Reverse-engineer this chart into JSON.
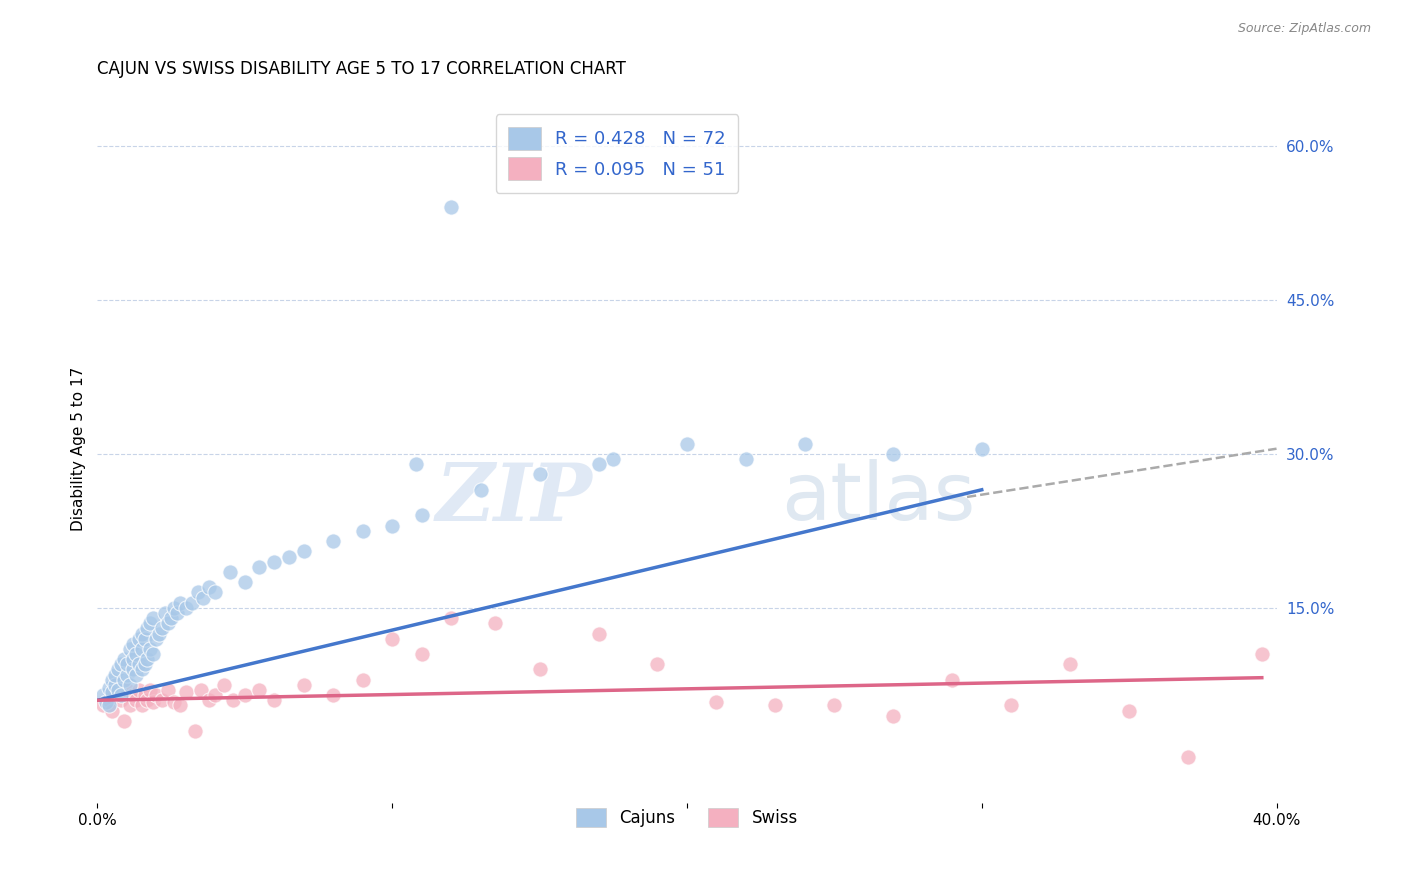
{
  "title": "CAJUN VS SWISS DISABILITY AGE 5 TO 17 CORRELATION CHART",
  "source": "Source: ZipAtlas.com",
  "ylabel": "Disability Age 5 to 17",
  "yticks": [
    "60.0%",
    "45.0%",
    "30.0%",
    "15.0%"
  ],
  "ytick_values": [
    0.6,
    0.45,
    0.3,
    0.15
  ],
  "xlim": [
    0.0,
    0.4
  ],
  "ylim": [
    -0.04,
    0.65
  ],
  "cajun_R": 0.428,
  "cajun_N": 72,
  "swiss_R": 0.095,
  "swiss_N": 51,
  "cajun_color": "#a8c8e8",
  "swiss_color": "#f4b0c0",
  "cajun_line_color": "#4477cc",
  "swiss_line_color": "#dd6688",
  "trend_dash_color": "#aaaaaa",
  "legend_text_color": "#3366cc",
  "background_color": "#ffffff",
  "grid_color": "#c8d4e8",
  "cajun_scatter_x": [
    0.002,
    0.003,
    0.004,
    0.004,
    0.005,
    0.005,
    0.006,
    0.006,
    0.007,
    0.007,
    0.008,
    0.008,
    0.009,
    0.009,
    0.01,
    0.01,
    0.011,
    0.011,
    0.012,
    0.012,
    0.012,
    0.013,
    0.013,
    0.014,
    0.014,
    0.015,
    0.015,
    0.015,
    0.016,
    0.016,
    0.017,
    0.017,
    0.018,
    0.018,
    0.019,
    0.019,
    0.02,
    0.021,
    0.022,
    0.023,
    0.024,
    0.025,
    0.026,
    0.027,
    0.028,
    0.03,
    0.032,
    0.034,
    0.036,
    0.038,
    0.04,
    0.045,
    0.05,
    0.055,
    0.06,
    0.065,
    0.07,
    0.08,
    0.09,
    0.1,
    0.11,
    0.13,
    0.15,
    0.175,
    0.2,
    0.22,
    0.24,
    0.27,
    0.3,
    0.17,
    0.12,
    0.108
  ],
  "cajun_scatter_y": [
    0.065,
    0.058,
    0.072,
    0.055,
    0.08,
    0.068,
    0.075,
    0.085,
    0.07,
    0.09,
    0.065,
    0.095,
    0.08,
    0.1,
    0.085,
    0.095,
    0.075,
    0.11,
    0.09,
    0.1,
    0.115,
    0.085,
    0.105,
    0.095,
    0.12,
    0.09,
    0.11,
    0.125,
    0.095,
    0.12,
    0.1,
    0.13,
    0.11,
    0.135,
    0.105,
    0.14,
    0.12,
    0.125,
    0.13,
    0.145,
    0.135,
    0.14,
    0.15,
    0.145,
    0.155,
    0.15,
    0.155,
    0.165,
    0.16,
    0.17,
    0.165,
    0.185,
    0.175,
    0.19,
    0.195,
    0.2,
    0.205,
    0.215,
    0.225,
    0.23,
    0.24,
    0.265,
    0.28,
    0.295,
    0.31,
    0.295,
    0.31,
    0.3,
    0.305,
    0.29,
    0.54,
    0.29
  ],
  "swiss_scatter_x": [
    0.002,
    0.004,
    0.005,
    0.006,
    0.008,
    0.009,
    0.01,
    0.011,
    0.012,
    0.013,
    0.014,
    0.015,
    0.016,
    0.017,
    0.018,
    0.019,
    0.02,
    0.022,
    0.024,
    0.026,
    0.028,
    0.03,
    0.033,
    0.035,
    0.038,
    0.04,
    0.043,
    0.046,
    0.05,
    0.055,
    0.06,
    0.07,
    0.08,
    0.09,
    0.1,
    0.11,
    0.12,
    0.135,
    0.15,
    0.17,
    0.19,
    0.21,
    0.23,
    0.25,
    0.27,
    0.29,
    0.31,
    0.33,
    0.35,
    0.37,
    0.395
  ],
  "swiss_scatter_y": [
    0.055,
    0.06,
    0.05,
    0.065,
    0.06,
    0.04,
    0.07,
    0.055,
    0.065,
    0.06,
    0.07,
    0.055,
    0.065,
    0.06,
    0.07,
    0.058,
    0.065,
    0.06,
    0.07,
    0.058,
    0.055,
    0.068,
    0.03,
    0.07,
    0.06,
    0.065,
    0.075,
    0.06,
    0.065,
    0.07,
    0.06,
    0.075,
    0.065,
    0.08,
    0.12,
    0.105,
    0.14,
    0.135,
    0.09,
    0.125,
    0.095,
    0.058,
    0.055,
    0.055,
    0.045,
    0.08,
    0.055,
    0.095,
    0.05,
    0.005,
    0.105
  ],
  "cajun_line_x": [
    0.0,
    0.3
  ],
  "cajun_line_y": [
    0.06,
    0.265
  ],
  "swiss_line_x": [
    0.0,
    0.395
  ],
  "swiss_line_y": [
    0.06,
    0.082
  ],
  "dash_line_x": [
    0.295,
    0.4
  ],
  "dash_line_y": [
    0.258,
    0.305
  ],
  "watermark_zip": "ZIP",
  "watermark_atlas": "atlas"
}
